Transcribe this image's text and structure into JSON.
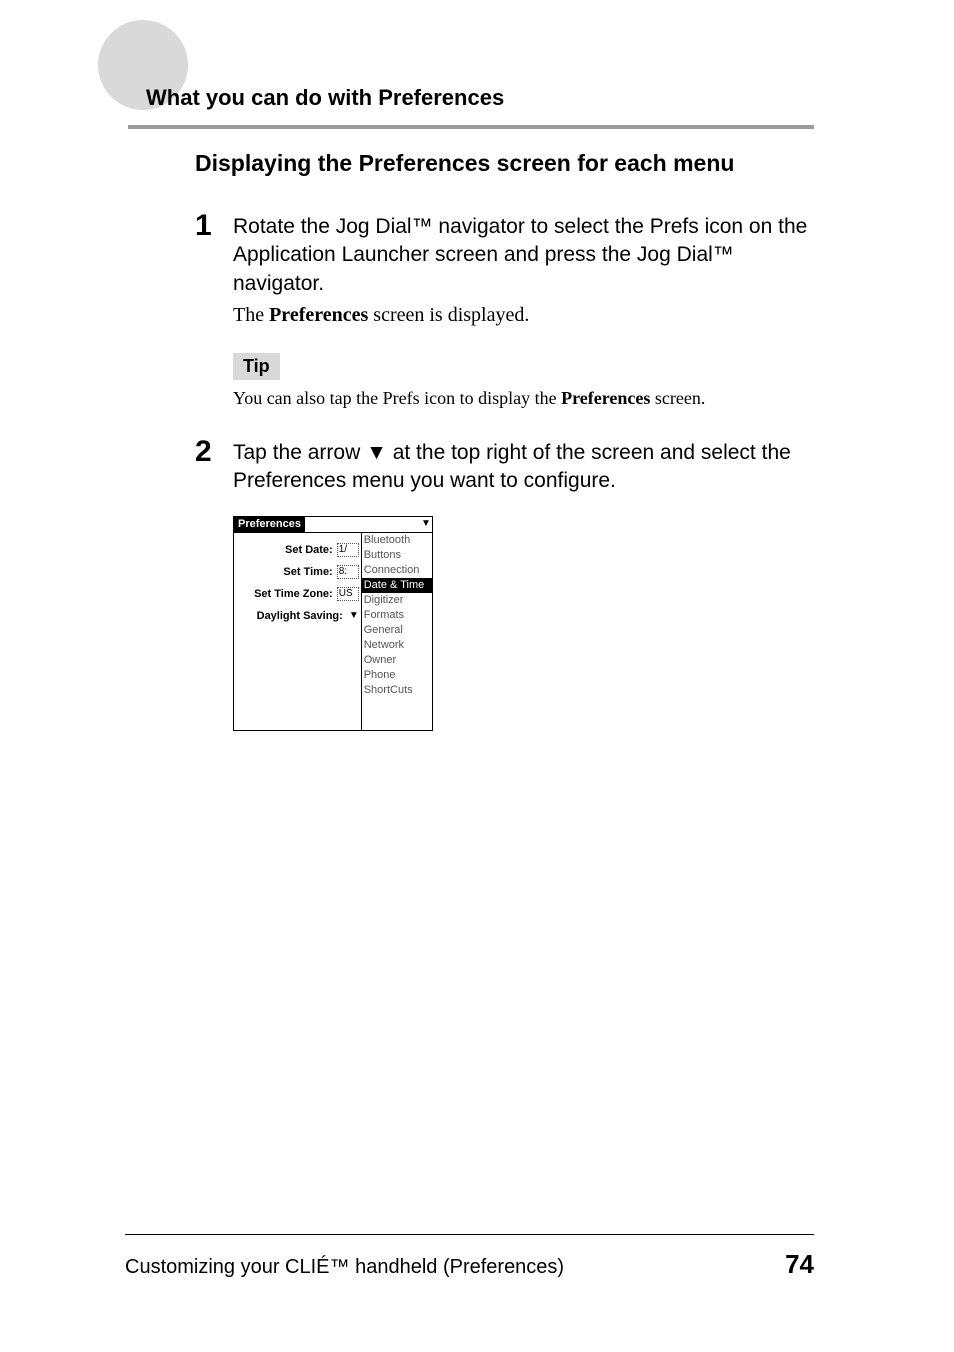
{
  "header": {
    "section_title": "What you can do with Preferences"
  },
  "subheading": "Displaying the Preferences screen for each menu",
  "steps": {
    "s1": {
      "num": "1",
      "text": "Rotate the Jog Dial™ navigator to select the Prefs icon on the Application Launcher screen and press the Jog Dial™ navigator.",
      "sub_pre": "The ",
      "sub_bold": "Preferences",
      "sub_post": " screen is displayed."
    },
    "s2": {
      "num": "2",
      "text_pre": "Tap the arrow ",
      "arrow": "▼",
      "text_post": " at the top right of the screen and select the Preferences menu you want to configure."
    }
  },
  "tip": {
    "label": "Tip",
    "text_pre": "You can also tap the Prefs icon to display the ",
    "text_bold": "Preferences",
    "text_post": " screen."
  },
  "palm": {
    "title": "Preferences",
    "drop_arrow": "▼",
    "rows": {
      "date": {
        "label": "Set Date:",
        "value": "1/"
      },
      "time": {
        "label": "Set Time:",
        "value": "8:"
      },
      "tz": {
        "label": "Set Time Zone:",
        "value": "US"
      },
      "dst": {
        "label": "Daylight Saving:",
        "value": "▼"
      }
    },
    "menu": {
      "i0": "Bluetooth",
      "i1": "Buttons",
      "i2": "Connection",
      "i3": "Date & Time",
      "i4": "Digitizer",
      "i5": "Formats",
      "i6": "General",
      "i7": "Network",
      "i8": "Owner",
      "i9": "Phone",
      "i10": "ShortCuts"
    },
    "selected_index": 3
  },
  "footer": {
    "text": "Customizing your CLIÉ™ handheld (Preferences)",
    "page": "74"
  },
  "colors": {
    "circle": "#d9d9d9",
    "header_rule": "#9b9b9b",
    "tip_bg": "#d9d9d9",
    "text": "#000000",
    "menu_gray": "#555555"
  }
}
